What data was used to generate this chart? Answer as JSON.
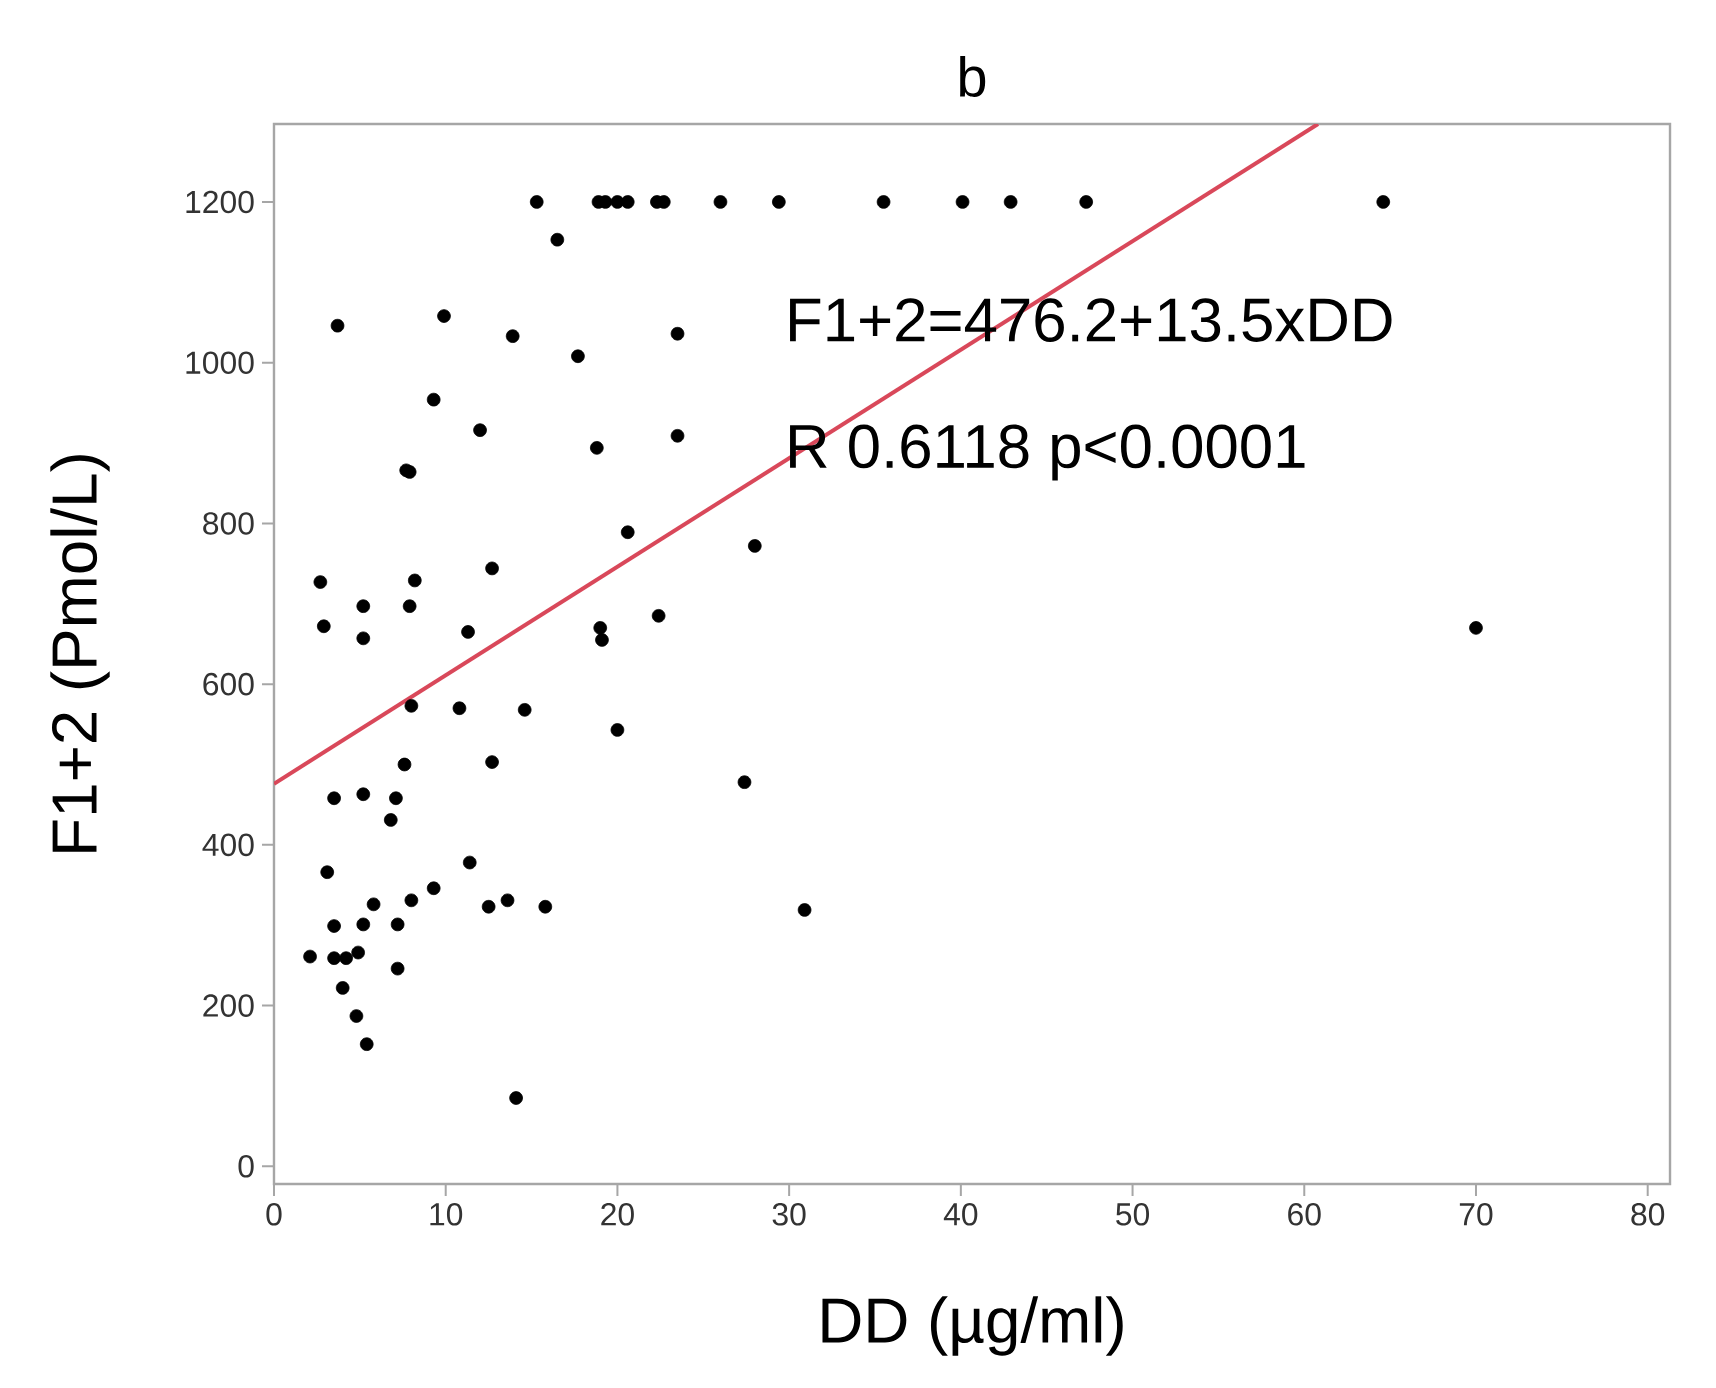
{
  "chart_data": {
    "type": "scatter",
    "title": "b",
    "xlabel": "DD (µg/ml)",
    "ylabel": "F1+2 (Pmol/L)",
    "xlim": [
      0,
      81.3
    ],
    "ylim": [
      -22,
      1297
    ],
    "xticks": [
      0,
      10,
      20,
      30,
      40,
      50,
      60,
      70,
      80
    ],
    "yticks": [
      0,
      200,
      400,
      600,
      800,
      1000,
      1200
    ],
    "grid": false,
    "annotations": [
      "F1+2=476.2+13.5xDD",
      "R 0.6118 p<0.0001"
    ],
    "series": [
      {
        "marker": "circle",
        "color": "#000000",
        "x": [
          15.3,
          18.9,
          19.3,
          20.0,
          20.6,
          22.3,
          22.7,
          26.0,
          29.4,
          35.5,
          40.1,
          42.9,
          47.3,
          64.6,
          16.5,
          3.7,
          9.9,
          13.9,
          17.7,
          23.5,
          9.3,
          12.0,
          7.7,
          7.9,
          18.8,
          23.5,
          20.6,
          28.0,
          12.7,
          2.7,
          8.2,
          2.9,
          5.2,
          7.9,
          11.3,
          19.0,
          19.1,
          22.4,
          70.0,
          5.2,
          8.0,
          10.8,
          14.6,
          20.0,
          7.6,
          12.7,
          27.4,
          3.5,
          5.2,
          7.1,
          6.8,
          3.1,
          11.4,
          5.8,
          8.0,
          9.3,
          12.5,
          13.6,
          15.8,
          3.5,
          5.2,
          7.2,
          30.9,
          2.1,
          3.5,
          4.2,
          4.9,
          7.2,
          4.0,
          4.8,
          5.4,
          14.1
        ],
        "values": [
          1200,
          1200,
          1200,
          1200,
          1200,
          1200,
          1200,
          1200,
          1200,
          1200,
          1200,
          1200,
          1200,
          1200,
          1153,
          1046,
          1058,
          1033,
          1008,
          1036,
          954,
          916,
          866,
          864,
          894,
          909,
          789,
          772,
          744,
          727,
          729,
          672,
          697,
          697,
          665,
          670,
          655,
          685,
          670,
          657,
          573,
          570,
          568,
          543,
          500,
          503,
          478,
          458,
          463,
          458,
          431,
          366,
          378,
          326,
          331,
          346,
          323,
          331,
          323,
          299,
          301,
          301,
          319,
          261,
          259,
          259,
          266,
          246,
          222,
          187,
          152,
          85
        ]
      },
      {
        "type": "line",
        "marker": "none",
        "color": "#d9485a",
        "x": [
          0,
          60.8
        ],
        "values": [
          476,
          1297
        ]
      }
    ]
  }
}
